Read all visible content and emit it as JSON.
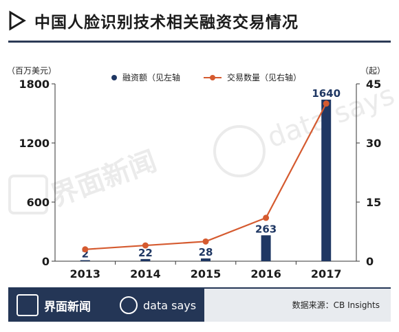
{
  "header": {
    "title": "中国人脸识别技术相关融资交易情况"
  },
  "units": {
    "left": "（百万美元）",
    "right": "（起）"
  },
  "legend": {
    "bar": "融资额（见左轴",
    "line": "交易数量（见右轴）"
  },
  "chart_data": {
    "type": "bar",
    "categories": [
      "2013",
      "2014",
      "2015",
      "2016",
      "2017"
    ],
    "series": [
      {
        "name": "融资额（见左轴",
        "type": "bar",
        "axis": "left",
        "values": [
          2,
          22,
          28,
          263,
          1640
        ],
        "labels": [
          "2",
          "22",
          "28",
          "263",
          "1640"
        ]
      },
      {
        "name": "交易数量（见右轴）",
        "type": "line",
        "axis": "right",
        "values": [
          3,
          4,
          5,
          11,
          40
        ]
      }
    ],
    "ylim_left": [
      0,
      1800
    ],
    "yticks_left": [
      0,
      600,
      1200,
      1800
    ],
    "ylim_right": [
      0,
      45
    ],
    "yticks_right": [
      0,
      15,
      30,
      45
    ],
    "colors": {
      "bar": "#1f3763",
      "line": "#d55a2f"
    }
  },
  "watermark": {
    "text1": "界面新闻",
    "text2": "data says"
  },
  "footer": {
    "brand": "界面新闻",
    "tag": "data says",
    "source": "数据来源：CB Insights"
  }
}
